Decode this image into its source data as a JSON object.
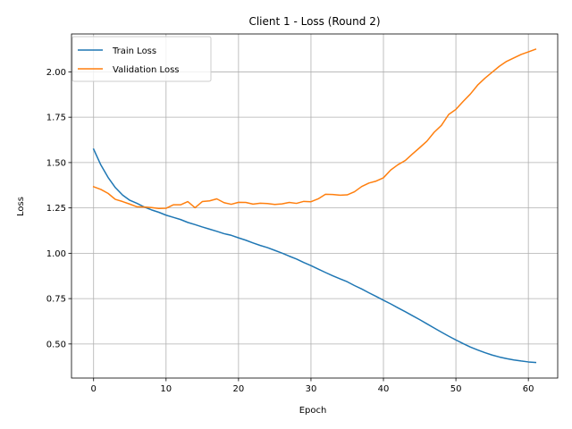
{
  "chart_data": {
    "type": "line",
    "title": "Client 1 - Loss (Round 2)",
    "xlabel": "Epoch",
    "ylabel": "Loss",
    "xlim": [
      -3.05,
      64.05
    ],
    "ylim": [
      0.312,
      2.209
    ],
    "xticks": [
      0,
      10,
      20,
      30,
      40,
      50,
      60
    ],
    "yticks": [
      0.5,
      0.75,
      1.0,
      1.25,
      1.5,
      1.75,
      2.0
    ],
    "ytick_labels": [
      "0.50",
      "0.75",
      "1.00",
      "1.25",
      "1.50",
      "1.75",
      "2.00"
    ],
    "grid": true,
    "legend_position": "upper left",
    "x": [
      0,
      1,
      2,
      3,
      4,
      5,
      6,
      7,
      8,
      9,
      10,
      11,
      12,
      13,
      14,
      15,
      16,
      17,
      18,
      19,
      20,
      21,
      22,
      23,
      24,
      25,
      26,
      27,
      28,
      29,
      30,
      31,
      32,
      33,
      34,
      35,
      36,
      37,
      38,
      39,
      40,
      41,
      42,
      43,
      44,
      45,
      46,
      47,
      48,
      49,
      50,
      51,
      52,
      53,
      54,
      55,
      56,
      57,
      58,
      59,
      60,
      61
    ],
    "series": [
      {
        "name": "Train Loss",
        "color": "#1f77b4",
        "values": [
          1.574,
          1.487,
          1.418,
          1.362,
          1.321,
          1.292,
          1.275,
          1.255,
          1.239,
          1.226,
          1.21,
          1.198,
          1.186,
          1.17,
          1.158,
          1.145,
          1.133,
          1.121,
          1.108,
          1.099,
          1.085,
          1.072,
          1.057,
          1.043,
          1.031,
          1.016,
          1.001,
          0.984,
          0.968,
          0.949,
          0.932,
          0.913,
          0.894,
          0.876,
          0.859,
          0.843,
          0.822,
          0.803,
          0.782,
          0.762,
          0.741,
          0.721,
          0.699,
          0.678,
          0.656,
          0.634,
          0.611,
          0.588,
          0.565,
          0.543,
          0.522,
          0.502,
          0.483,
          0.467,
          0.452,
          0.439,
          0.428,
          0.419,
          0.412,
          0.406,
          0.401,
          0.398
        ]
      },
      {
        "name": "Validation Loss",
        "color": "#ff7f0e",
        "values": [
          1.367,
          1.352,
          1.33,
          1.297,
          1.285,
          1.271,
          1.256,
          1.255,
          1.252,
          1.247,
          1.248,
          1.267,
          1.267,
          1.285,
          1.251,
          1.285,
          1.289,
          1.3,
          1.279,
          1.27,
          1.281,
          1.28,
          1.271,
          1.276,
          1.274,
          1.269,
          1.272,
          1.28,
          1.275,
          1.286,
          1.284,
          1.3,
          1.325,
          1.324,
          1.32,
          1.322,
          1.339,
          1.368,
          1.387,
          1.398,
          1.416,
          1.459,
          1.488,
          1.511,
          1.547,
          1.582,
          1.618,
          1.667,
          1.705,
          1.765,
          1.793,
          1.837,
          1.878,
          1.927,
          1.965,
          1.998,
          2.031,
          2.058,
          2.077,
          2.096,
          2.11,
          2.125
        ]
      }
    ]
  }
}
